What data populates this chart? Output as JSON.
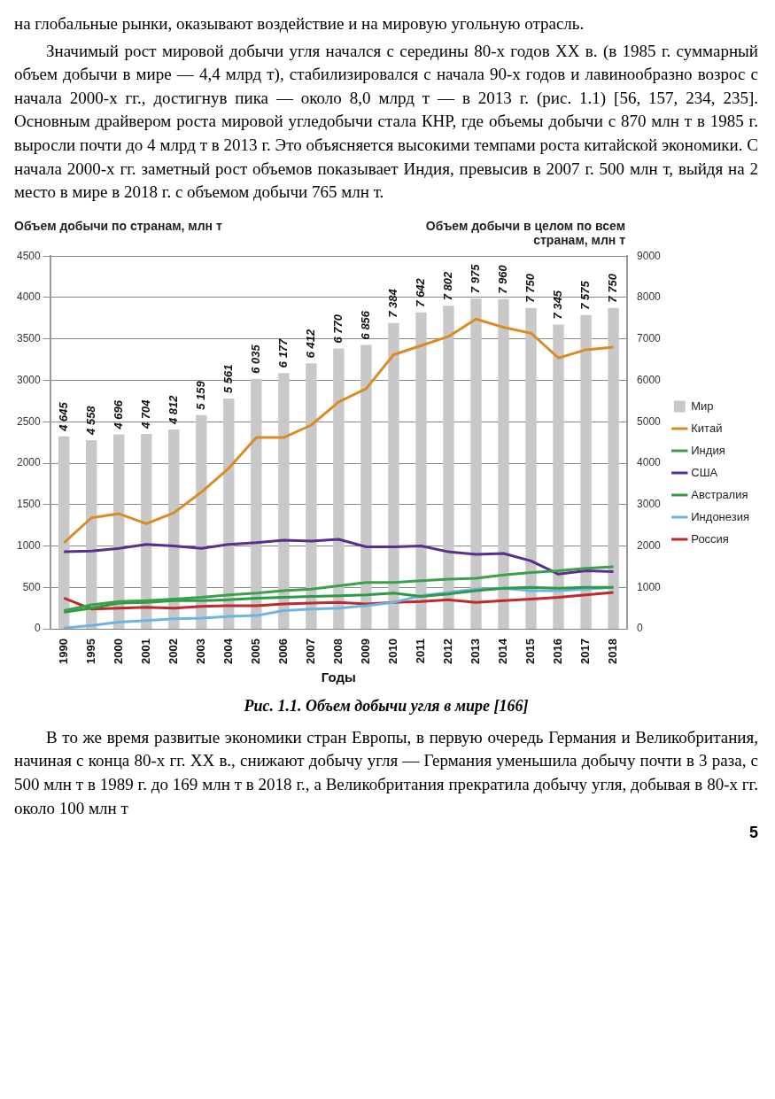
{
  "chart_data": {
    "type": "bar",
    "title": "Рис. 1.1. Объем добычи угля в мире [166]",
    "xlabel": "Годы",
    "ylabel": "Объем добычи по странам, млн т",
    "y2label": "Объем добычи в целом по всем странам, млн т",
    "categories": [
      "1990",
      "1995",
      "2000",
      "2001",
      "2002",
      "2003",
      "2004",
      "2005",
      "2006",
      "2007",
      "2008",
      "2009",
      "2010",
      "2011",
      "2012",
      "2013",
      "2014",
      "2015",
      "2016",
      "2017",
      "2018"
    ],
    "series": [
      {
        "name": "Мир",
        "axis": "y2",
        "color": "#c8c8c8",
        "values": [
          4645,
          4558,
          4696,
          4704,
          4812,
          5159,
          5561,
          6035,
          6177,
          6412,
          6770,
          6856,
          7384,
          7642,
          7802,
          7975,
          7960,
          7750,
          7345,
          7575,
          7750
        ],
        "value_labels": [
          "4 645",
          "4 558",
          "4 696",
          "4 704",
          "4 812",
          "5 159",
          "5 561",
          "6 035",
          "6 177",
          "6 412",
          "6 770",
          "6 856",
          "7 384",
          "7 642",
          "7 802",
          "7 975",
          "7 960",
          "7 750",
          "7 345",
          "7 575",
          "7 750"
        ]
      },
      {
        "name": "Китай",
        "type": "line",
        "color": "#d98c24",
        "values": [
          1040,
          1340,
          1390,
          1270,
          1400,
          1650,
          1940,
          2310,
          2310,
          2460,
          2740,
          2900,
          3310,
          3420,
          3530,
          3740,
          3640,
          3570,
          3270,
          3370,
          3400
        ]
      },
      {
        "name": "Индия",
        "type": "line",
        "color": "#3aa14a",
        "values": [
          220,
          290,
          330,
          340,
          360,
          380,
          410,
          430,
          460,
          480,
          520,
          560,
          560,
          580,
          600,
          610,
          650,
          680,
          700,
          730,
          750
        ]
      },
      {
        "name": "США",
        "type": "line",
        "color": "#5b2d8c",
        "values": [
          930,
          940,
          970,
          1020,
          1000,
          970,
          1020,
          1040,
          1070,
          1060,
          1080,
          990,
          990,
          1000,
          930,
          900,
          910,
          820,
          660,
          700,
          690
        ]
      },
      {
        "name": "Австралия",
        "type": "line",
        "color": "#2e9a45",
        "values": [
          200,
          250,
          310,
          320,
          340,
          340,
          350,
          370,
          380,
          390,
          400,
          410,
          430,
          390,
          420,
          460,
          490,
          500,
          490,
          500,
          500
        ]
      },
      {
        "name": "Индонезия",
        "type": "line",
        "color": "#6fb3e3",
        "values": [
          10,
          40,
          80,
          100,
          120,
          130,
          150,
          160,
          220,
          240,
          250,
          280,
          320,
          400,
          440,
          480,
          490,
          460,
          460,
          480,
          500
        ]
      },
      {
        "name": "Россия",
        "type": "line",
        "color": "#c0282e",
        "values": [
          370,
          240,
          250,
          260,
          250,
          270,
          280,
          280,
          300,
          310,
          320,
          300,
          320,
          330,
          350,
          320,
          340,
          360,
          380,
          410,
          440
        ]
      }
    ],
    "ylim": [
      0,
      4500
    ],
    "yticks": [
      0,
      500,
      1000,
      1500,
      2000,
      2500,
      3000,
      3500,
      4000,
      4500
    ],
    "y2lim": [
      0,
      9000
    ],
    "y2ticks": [
      0,
      1000,
      2000,
      3000,
      4000,
      5000,
      6000,
      7000,
      8000,
      9000
    ],
    "grid": "y",
    "legend": "right",
    "marker": "none",
    "annotations": [
      "на глобальные рынки, оказывают воздействие и на мировую угольную отрасль.",
      "Значимый рост мировой добычи угля начался с середины 80-х годов XX в. (в 1985 г. суммарный объем добычи в мире — 4,4 млрд т), стабилизировался с начала 90-х годов и лавинообразно возрос с начала 2000-х гг., достигнув пика — около 8,0 млрд т — в 2013 г. (рис. 1.1) [56, 157, 234, 235]. Основным драйвером роста мировой угледобычи стала КНР, где объемы добычи с 870 млн т в 1985 г. выросли почти до 4 млрд т в 2013 г. Это объясняется высокими темпами роста китайской экономики. С начала 2000-х гг. заметный рост объемов показывает Индия, превысив в 2007 г. 500 млн т, выйдя на 2 место в мире в 2018 г. с объемом добычи 765 млн т.",
      "В то же время развитые экономики стран Европы, в первую очередь Германия и Великобритания, начиная с конца 80-х гг. XX в., снижают добычу угля — Германия уменьшила добычу почти в 3 раза, с 500 млн т в 1989 г. до 169 млн т в 2018 г., а Великобритания прекратила добычу угля, добывая в 80-х гг. около 100 млн т",
      "5"
    ]
  }
}
